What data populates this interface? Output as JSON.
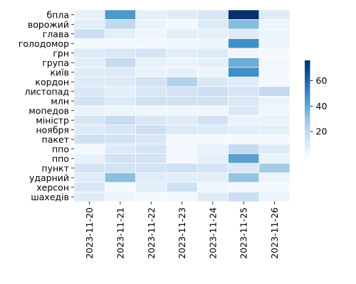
{
  "chart_data": {
    "type": "heatmap",
    "title": "",
    "xlabel": "",
    "ylabel": "",
    "x": [
      "2023-11-20",
      "2023-11-21",
      "2023-11-22",
      "2023-11-23",
      "2023-11-24",
      "2023-11-25",
      "2023-11-26"
    ],
    "y": [
      "бпла",
      "ворожий",
      "глава",
      "голодомор",
      "грн",
      "група",
      "київ",
      "кордон",
      "листопад",
      "млн",
      "мопедов",
      "міністр",
      "ноября",
      "пакет",
      "ппо",
      "ппо",
      "пункт",
      "ударний",
      "херсон",
      "шахедів"
    ],
    "values": [
      [
        6,
        45,
        7,
        9,
        12,
        76,
        9
      ],
      [
        8,
        20,
        5,
        2,
        9,
        33,
        4
      ],
      [
        17,
        8,
        3,
        8,
        7,
        9,
        4
      ],
      [
        1,
        2,
        2,
        3,
        4,
        48,
        4
      ],
      [
        10,
        11,
        13,
        8,
        10,
        3,
        1
      ],
      [
        8,
        19,
        6,
        5,
        7,
        38,
        3
      ],
      [
        9,
        10,
        5,
        6,
        4,
        48,
        2
      ],
      [
        10,
        10,
        14,
        24,
        11,
        9,
        2
      ],
      [
        12,
        8,
        12,
        14,
        16,
        13,
        20
      ],
      [
        14,
        10,
        15,
        15,
        15,
        11,
        5
      ],
      [
        5,
        4,
        3,
        3,
        3,
        11,
        3
      ],
      [
        12,
        18,
        11,
        9,
        14,
        5,
        5
      ],
      [
        10,
        12,
        16,
        10,
        10,
        8,
        7
      ],
      [
        15,
        14,
        11,
        2,
        1,
        1,
        2
      ],
      [
        1,
        10,
        13,
        2,
        6,
        19,
        10
      ],
      [
        6,
        14,
        14,
        2,
        7,
        42,
        5
      ],
      [
        14,
        14,
        14,
        16,
        13,
        11,
        27
      ],
      [
        9,
        32,
        9,
        8,
        8,
        30,
        4
      ],
      [
        12,
        1,
        8,
        16,
        3,
        2,
        2
      ],
      [
        9,
        4,
        1,
        2,
        9,
        17,
        4
      ]
    ],
    "colorbar": {
      "min": 0,
      "max": 76,
      "ticks": [
        20,
        40,
        60
      ]
    },
    "colormap": "Blues",
    "colors": {
      "low": "#f7fbff",
      "high": "#08306b",
      "cell_border": "#ffffff"
    },
    "grid": false,
    "legend": "colorbar-right"
  }
}
